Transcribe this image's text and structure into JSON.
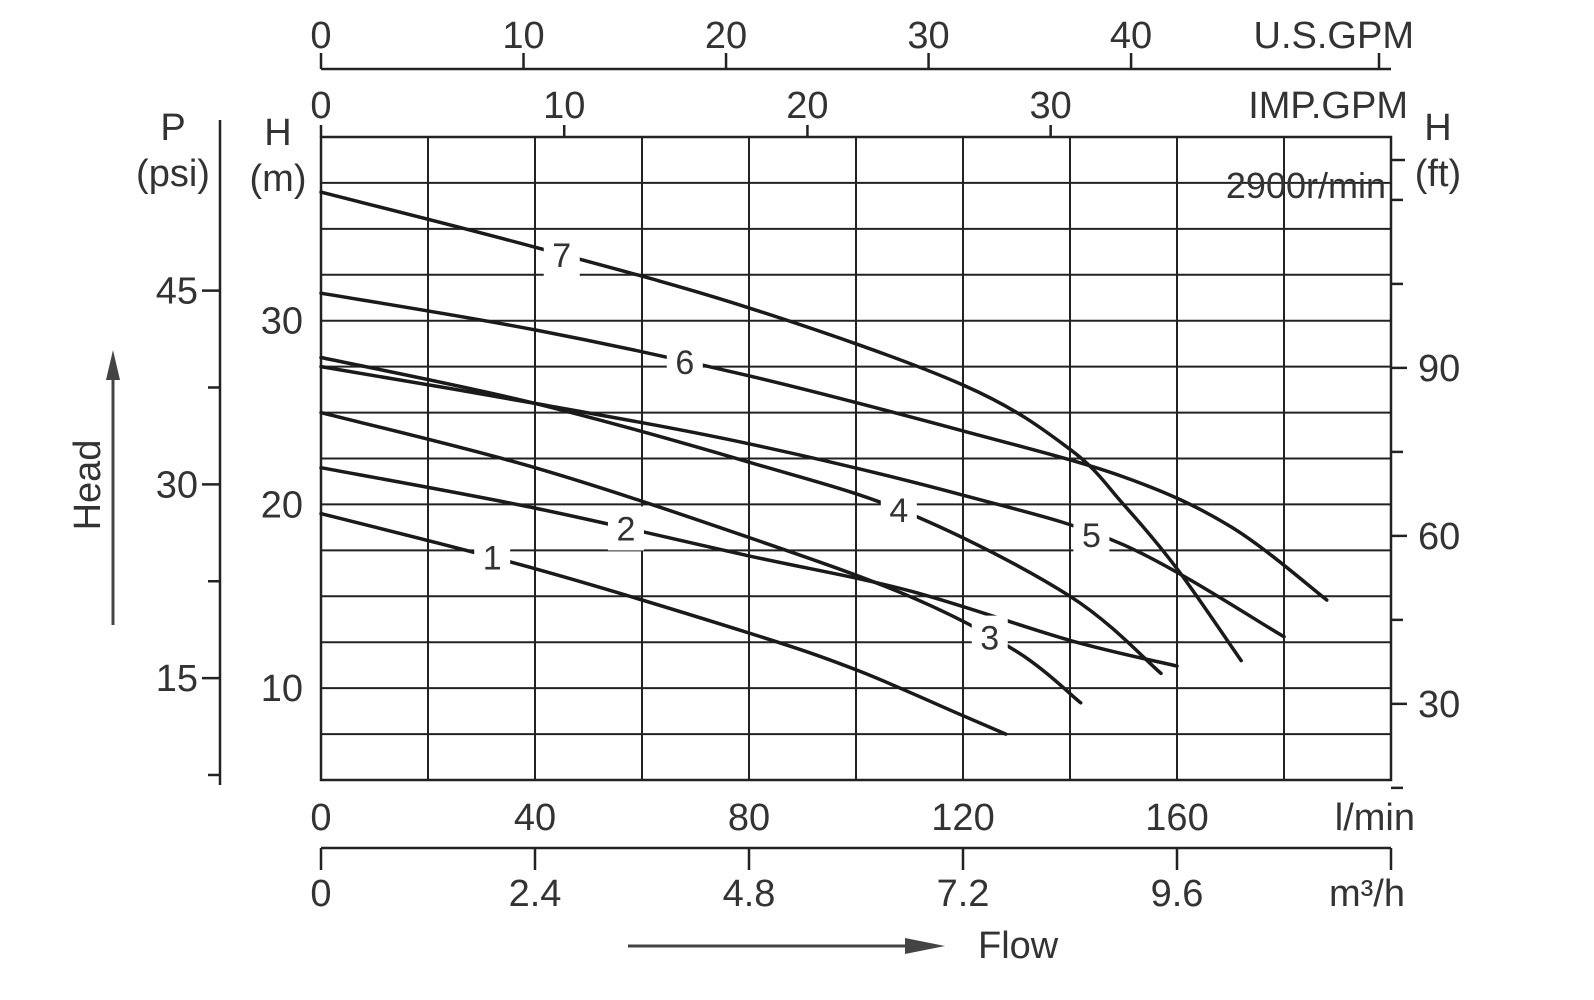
{
  "chart_data": {
    "type": "line",
    "speed": "2900r/min",
    "x_label": "Flow",
    "y_label": "Head",
    "xlim": [
      0,
      200
    ],
    "ylim": [
      5,
      40
    ],
    "x_unit": "l/min",
    "y_unit": "H\n(m)",
    "x_ticks": [
      "0",
      "40",
      "80",
      "120",
      "160"
    ],
    "y_ticks": [
      "10",
      "20",
      "30"
    ],
    "secondary_axes": {
      "m3h": {
        "unit": "m³/h",
        "ticks": [
          "0",
          "2.4",
          "4.8",
          "7.2",
          "9.6"
        ]
      },
      "usgpm": {
        "unit": "U.S.GPM",
        "ticks": [
          "0",
          "10",
          "20",
          "30",
          "40"
        ]
      },
      "impgpm": {
        "unit": "IMP.GPM",
        "ticks": [
          "0",
          "10",
          "20",
          "30"
        ]
      },
      "psi": {
        "unit": "P\n(psi)",
        "ticks": [
          "15",
          "30",
          "45"
        ]
      },
      "ft": {
        "unit": "H\n(ft)",
        "ticks": [
          "30",
          "60",
          "90"
        ]
      }
    },
    "series": [
      {
        "name": "1",
        "x": [
          0,
          40,
          80,
          100,
          120,
          128
        ],
        "y": [
          19.5,
          16.5,
          13,
          11,
          8.5,
          7.5
        ]
      },
      {
        "name": "2",
        "x": [
          0,
          40,
          80,
          110,
          140,
          160
        ],
        "y": [
          22,
          19.8,
          17.2,
          15.3,
          12.6,
          11.2
        ]
      },
      {
        "name": "3",
        "x": [
          0,
          40,
          80,
          110,
          130,
          142
        ],
        "y": [
          25,
          22,
          18.2,
          15,
          12,
          9.2
        ]
      },
      {
        "name": "4",
        "x": [
          0,
          40,
          80,
          110,
          140,
          157
        ],
        "y": [
          28,
          25.5,
          22.3,
          19.5,
          15,
          10.8
        ]
      },
      {
        "name": "5",
        "x": [
          0,
          40,
          80,
          120,
          150,
          180
        ],
        "y": [
          27.5,
          25.5,
          23.3,
          20.5,
          17.8,
          12.8
        ]
      },
      {
        "name": "6",
        "x": [
          0,
          40,
          80,
          120,
          150,
          170,
          188
        ],
        "y": [
          31.5,
          29.5,
          27,
          24,
          21.5,
          18.8,
          14.8
        ]
      },
      {
        "name": "7",
        "x": [
          0,
          40,
          80,
          120,
          140,
          150,
          160,
          172
        ],
        "y": [
          37,
          34,
          30.7,
          26.5,
          23,
          20,
          16.5,
          11.5
        ]
      }
    ]
  }
}
